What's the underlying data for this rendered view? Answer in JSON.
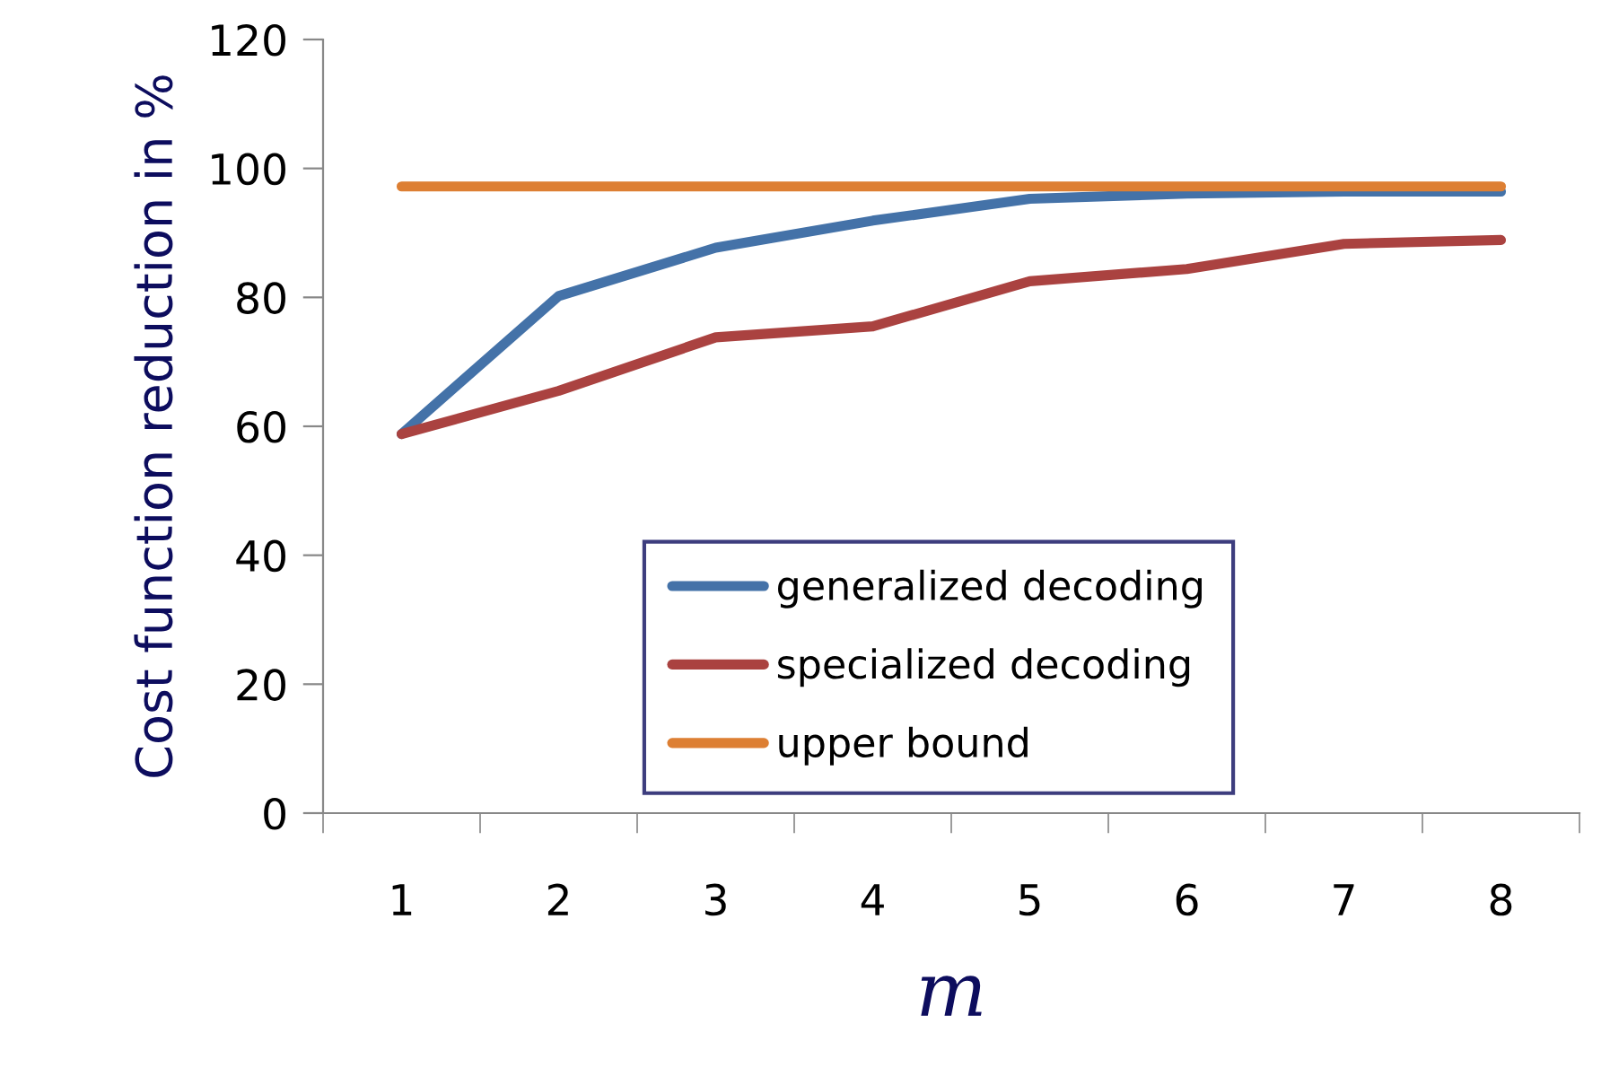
{
  "chart_data": {
    "type": "line",
    "xlabel": "m",
    "ylabel": "Cost function reduction in %",
    "categories": [
      "1",
      "2",
      "3",
      "4",
      "5",
      "6",
      "7",
      "8"
    ],
    "series": [
      {
        "name": "generalized decoding",
        "color": "#4472a8",
        "values": [
          58.8,
          80.2,
          87.7,
          91.9,
          95.3,
          96.1,
          96.4,
          96.4
        ]
      },
      {
        "name": "specialized decoding",
        "color": "#aa4240",
        "values": [
          58.8,
          65.5,
          73.8,
          75.5,
          82.5,
          84.4,
          88.3,
          88.9
        ]
      },
      {
        "name": "upper bound",
        "color": "#dd7f33",
        "values": [
          97.2,
          97.2,
          97.2,
          97.2,
          97.2,
          97.2,
          97.2,
          97.2
        ]
      }
    ],
    "ylim": [
      0,
      120
    ],
    "yticks": [
      0,
      20,
      40,
      60,
      80,
      100,
      120
    ],
    "grid": false,
    "legend": "bottom",
    "marker": "none",
    "line_style": "solid"
  }
}
